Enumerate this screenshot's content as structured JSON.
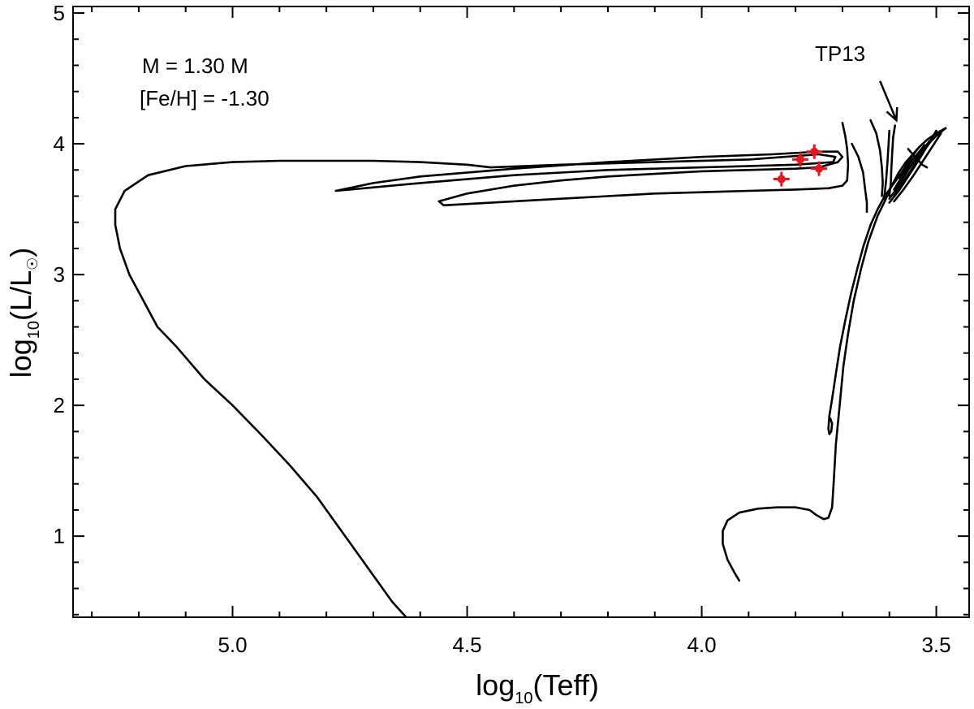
{
  "chart_data": {
    "type": "line",
    "title": "",
    "xlabel": "log10(Teff)",
    "xlabel_main": "log",
    "xlabel_sub": "10",
    "xlabel_rest": "(Teff)",
    "ylabel": "log10(L/L☉)",
    "ylabel_main": "log",
    "ylabel_sub": "10",
    "ylabel_rest": "(L/L",
    "ylabel_sun": "☉",
    "ylabel_close": ")",
    "xlim": [
      5.34,
      3.43
    ],
    "ylim": [
      0.38,
      5.05
    ],
    "x_inverted": true,
    "xticks": [
      5.0,
      4.5,
      4.0,
      3.5
    ],
    "xtick_labels": [
      "5.0",
      "4.5",
      "4.0",
      "3.5"
    ],
    "xminor": [
      5.3,
      5.2,
      5.1,
      4.9,
      4.8,
      4.7,
      4.6,
      4.4,
      4.3,
      4.2,
      4.1,
      3.9,
      3.8,
      3.7,
      3.6
    ],
    "yticks": [
      1,
      2,
      3,
      4,
      5
    ],
    "ytick_labels": [
      "1",
      "2",
      "3",
      "4",
      "5"
    ],
    "yminor": [
      0.4,
      0.6,
      0.8,
      1.2,
      1.4,
      1.6,
      1.8,
      2.2,
      2.4,
      2.6,
      2.8,
      3.2,
      3.4,
      3.6,
      3.8,
      4.2,
      4.4,
      4.6,
      4.8
    ],
    "annotations": {
      "mass_label": "M = 1.30 M",
      "feh_label": "[Fe/H] = -1.30",
      "tp_label": "TP13",
      "tp_arrow_from": [
        3.62,
        4.48
      ],
      "tp_arrow_to": [
        3.585,
        4.18
      ]
    },
    "series": [
      {
        "name": "evolutionary-track",
        "color": "#000000",
        "segments": [
          [
            [
              3.92,
              0.66
            ],
            [
              3.93,
              0.72
            ],
            [
              3.945,
              0.82
            ],
            [
              3.955,
              0.94
            ],
            [
              3.955,
              1.04
            ],
            [
              3.945,
              1.12
            ],
            [
              3.92,
              1.18
            ],
            [
              3.88,
              1.21
            ],
            [
              3.84,
              1.22
            ],
            [
              3.8,
              1.22
            ],
            [
              3.77,
              1.2
            ],
            [
              3.755,
              1.16
            ],
            [
              3.74,
              1.13
            ],
            [
              3.73,
              1.14
            ],
            [
              3.722,
              1.22
            ],
            [
              3.718,
              1.45
            ],
            [
              3.714,
              1.7
            ],
            [
              3.706,
              2.0
            ],
            [
              3.698,
              2.3
            ],
            [
              3.688,
              2.55
            ],
            [
              3.676,
              2.8
            ],
            [
              3.66,
              3.05
            ],
            [
              3.645,
              3.25
            ],
            [
              3.625,
              3.45
            ],
            [
              3.61,
              3.56
            ],
            [
              3.595,
              3.68
            ],
            [
              3.58,
              3.78
            ],
            [
              3.565,
              3.86
            ],
            [
              3.55,
              3.92
            ],
            [
              3.535,
              3.98
            ],
            [
              3.52,
              4.03
            ],
            [
              3.5,
              4.08
            ],
            [
              3.48,
              4.12
            ]
          ],
          [
            [
              3.48,
              4.12
            ],
            [
              3.5,
              4.06
            ],
            [
              3.52,
              3.99
            ],
            [
              3.545,
              3.9
            ],
            [
              3.57,
              3.8
            ],
            [
              3.59,
              3.7
            ],
            [
              3.61,
              3.6
            ],
            [
              3.625,
              3.5
            ],
            [
              3.64,
              3.38
            ],
            [
              3.655,
              3.22
            ],
            [
              3.668,
              3.05
            ],
            [
              3.682,
              2.85
            ],
            [
              3.694,
              2.65
            ],
            [
              3.705,
              2.45
            ],
            [
              3.715,
              2.22
            ],
            [
              3.722,
              2.05
            ],
            [
              3.728,
              1.92
            ],
            [
              3.73,
              1.82
            ],
            [
              3.728,
              1.78
            ],
            [
              3.724,
              1.8
            ],
            [
              3.722,
              1.86
            ],
            [
              3.726,
              1.9
            ]
          ],
          [
            [
              3.5,
              4.1
            ],
            [
              3.52,
              3.98
            ],
            [
              3.54,
              3.86
            ],
            [
              3.56,
              3.75
            ],
            [
              3.58,
              3.64
            ],
            [
              3.6,
              3.55
            ]
          ],
          [
            [
              3.49,
              4.08
            ],
            [
              3.51,
              3.97
            ],
            [
              3.53,
              3.86
            ],
            [
              3.55,
              3.75
            ],
            [
              3.57,
              3.65
            ],
            [
              3.59,
              3.56
            ]
          ],
          [
            [
              3.505,
              4.05
            ],
            [
              3.53,
              3.93
            ],
            [
              3.55,
              3.82
            ],
            [
              3.57,
              3.71
            ],
            [
              3.59,
              3.6
            ]
          ],
          [
            [
              3.515,
              4.02
            ],
            [
              3.54,
              3.9
            ],
            [
              3.56,
              3.8
            ],
            [
              3.58,
              3.68
            ],
            [
              3.6,
              3.58
            ]
          ],
          [
            [
              3.525,
              3.99
            ],
            [
              3.55,
              3.88
            ],
            [
              3.57,
              3.77
            ],
            [
              3.59,
              3.65
            ]
          ],
          [
            [
              3.54,
              3.96
            ],
            [
              3.56,
              3.86
            ],
            [
              3.58,
              3.74
            ]
          ],
          [
            [
              3.56,
              3.96
            ],
            [
              3.545,
              3.9
            ],
            [
              3.53,
              3.84
            ],
            [
              3.52,
              3.82
            ]
          ],
          [
            [
              3.588,
              4.14
            ],
            [
              3.592,
              4.05
            ],
            [
              3.594,
              3.93
            ],
            [
              3.596,
              3.8
            ],
            [
              3.597,
              3.7
            ],
            [
              3.6,
              3.6
            ]
          ],
          [
            [
              3.6,
              4.1
            ],
            [
              3.602,
              3.98
            ],
            [
              3.604,
              3.86
            ],
            [
              3.607,
              3.72
            ]
          ],
          [
            [
              3.607,
              3.72
            ],
            [
              3.61,
              3.62
            ],
            [
              3.612,
              3.58
            ]
          ],
          [
            [
              3.64,
              4.18
            ],
            [
              3.628,
              4.08
            ],
            [
              3.62,
              3.95
            ],
            [
              3.616,
              3.82
            ],
            [
              3.614,
              3.7
            ],
            [
              3.616,
              3.6
            ]
          ],
          [
            [
              3.68,
              4.0
            ],
            [
              3.666,
              3.9
            ],
            [
              3.656,
              3.78
            ],
            [
              3.652,
              3.66
            ],
            [
              3.648,
              3.55
            ],
            [
              3.648,
              3.48
            ]
          ],
          [
            [
              3.7,
              4.16
            ],
            [
              3.694,
              4.06
            ],
            [
              3.69,
              3.96
            ],
            [
              3.688,
              3.84
            ],
            [
              3.69,
              3.72
            ],
            [
              3.7,
              3.68
            ],
            [
              3.73,
              3.66
            ],
            [
              3.8,
              3.65
            ],
            [
              3.9,
              3.64
            ],
            [
              4.0,
              3.63
            ],
            [
              4.1,
              3.62
            ],
            [
              4.2,
              3.6
            ],
            [
              4.3,
              3.58
            ],
            [
              4.4,
              3.56
            ],
            [
              4.5,
              3.54
            ],
            [
              4.55,
              3.53
            ],
            [
              4.56,
              3.56
            ],
            [
              4.5,
              3.62
            ],
            [
              4.4,
              3.68
            ],
            [
              4.3,
              3.72
            ],
            [
              4.2,
              3.75
            ],
            [
              4.1,
              3.77
            ],
            [
              4.0,
              3.79
            ],
            [
              3.9,
              3.8
            ],
            [
              3.8,
              3.81
            ],
            [
              3.75,
              3.82
            ],
            [
              3.71,
              3.86
            ],
            [
              3.7,
              3.9
            ],
            [
              3.71,
              3.94
            ],
            [
              3.75,
              3.94
            ],
            [
              3.85,
              3.92
            ],
            [
              4.0,
              3.9
            ],
            [
              4.2,
              3.86
            ],
            [
              4.4,
              3.81
            ],
            [
              4.6,
              3.75
            ],
            [
              4.7,
              3.7
            ],
            [
              4.78,
              3.64
            ],
            [
              4.72,
              3.66
            ],
            [
              4.6,
              3.7
            ],
            [
              4.5,
              3.73
            ],
            [
              4.4,
              3.76
            ],
            [
              4.3,
              3.78
            ],
            [
              4.2,
              3.8
            ],
            [
              4.0,
              3.82
            ],
            [
              3.8,
              3.84
            ],
            [
              3.72,
              3.86
            ],
            [
              3.715,
              3.9
            ],
            [
              3.75,
              3.92
            ],
            [
              3.9,
              3.88
            ],
            [
              4.1,
              3.86
            ],
            [
              4.3,
              3.84
            ],
            [
              4.45,
              3.82
            ],
            [
              4.5,
              3.84
            ],
            [
              4.55,
              3.85
            ],
            [
              4.6,
              3.86
            ],
            [
              4.7,
              3.87
            ],
            [
              4.8,
              3.87
            ],
            [
              4.9,
              3.87
            ],
            [
              5.0,
              3.86
            ],
            [
              5.1,
              3.83
            ],
            [
              5.18,
              3.76
            ],
            [
              5.23,
              3.64
            ],
            [
              5.25,
              3.5
            ],
            [
              5.25,
              3.38
            ],
            [
              5.24,
              3.2
            ],
            [
              5.22,
              3.0
            ],
            [
              5.19,
              2.8
            ],
            [
              5.16,
              2.6
            ],
            [
              5.12,
              2.45
            ],
            [
              5.06,
              2.2
            ],
            [
              5.0,
              2.0
            ],
            [
              4.94,
              1.78
            ],
            [
              4.88,
              1.55
            ],
            [
              4.82,
              1.3
            ],
            [
              4.78,
              1.1
            ],
            [
              4.74,
              0.9
            ],
            [
              4.7,
              0.7
            ],
            [
              4.66,
              0.5
            ],
            [
              4.63,
              0.38
            ]
          ]
        ]
      },
      {
        "name": "observed-points",
        "color": "#e8141e",
        "points": [
          {
            "x": 3.83,
            "y": 3.73
          },
          {
            "x": 3.79,
            "y": 3.88
          },
          {
            "x": 3.76,
            "y": 3.94
          },
          {
            "x": 3.75,
            "y": 3.81
          }
        ]
      }
    ]
  }
}
